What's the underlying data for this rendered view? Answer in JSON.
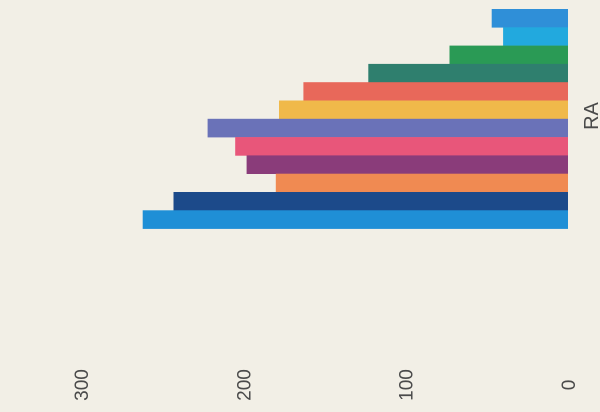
{
  "chart_data": {
    "type": "bar",
    "orientation": "horizontal",
    "category_label": "RA",
    "values": [
      47,
      40,
      73,
      123,
      163,
      178,
      222,
      205,
      198,
      180,
      243,
      262
    ],
    "colors": [
      "#2f8fd8",
      "#22a9de",
      "#2a9a55",
      "#2f7f6e",
      "#e8685a",
      "#f0b94a",
      "#6a72b8",
      "#e8567a",
      "#8a3c7a",
      "#f08a52",
      "#1c4a8a",
      "#1f8fd6"
    ],
    "xlim": [
      0,
      300
    ],
    "xticks": [
      0,
      100,
      200,
      300
    ],
    "grid": false
  }
}
